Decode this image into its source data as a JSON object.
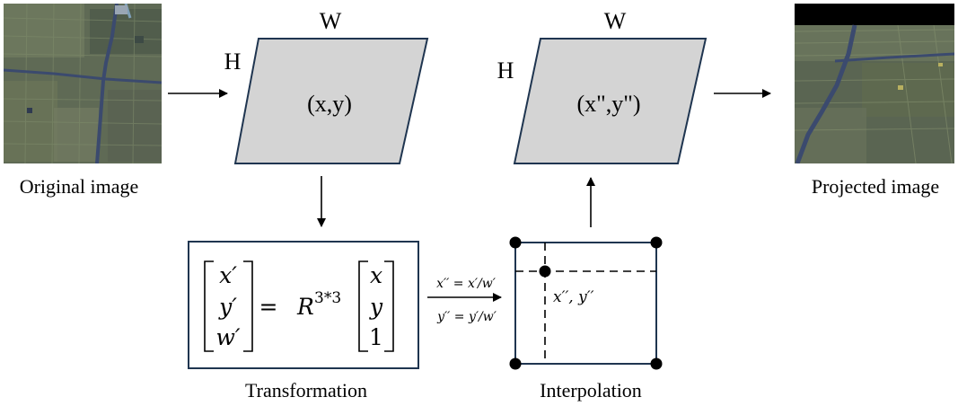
{
  "colors": {
    "parallelogram_fill": "#d4d4d4",
    "parallelogram_stroke": "#1f3550",
    "box_stroke": "#1f3550",
    "arrow": "#000000",
    "satellite_base": "#5f6a55",
    "satellite_road": "#3b4a6e",
    "projected_black_band": "#000000"
  },
  "images": {
    "original": {
      "caption": "Original image"
    },
    "projected": {
      "caption": "Projected image"
    }
  },
  "plane_input": {
    "width_label": "W",
    "height_label": "H",
    "coord": "(x,y)"
  },
  "plane_output": {
    "width_label": "W",
    "height_label": "H",
    "coord": "(x\",y\")"
  },
  "transformation": {
    "caption": "Transformation",
    "lhs": [
      "x′",
      "y′",
      "w′"
    ],
    "eq": "=",
    "R": "R",
    "R_sup": "3*3",
    "rhs": [
      "x",
      "y",
      "1"
    ]
  },
  "normalization": {
    "x_eq": "x′′ = x′/w′",
    "y_eq": "y′′ = y′/w′"
  },
  "interpolation": {
    "caption": "Interpolation",
    "point_label": "x′′, y′′"
  }
}
